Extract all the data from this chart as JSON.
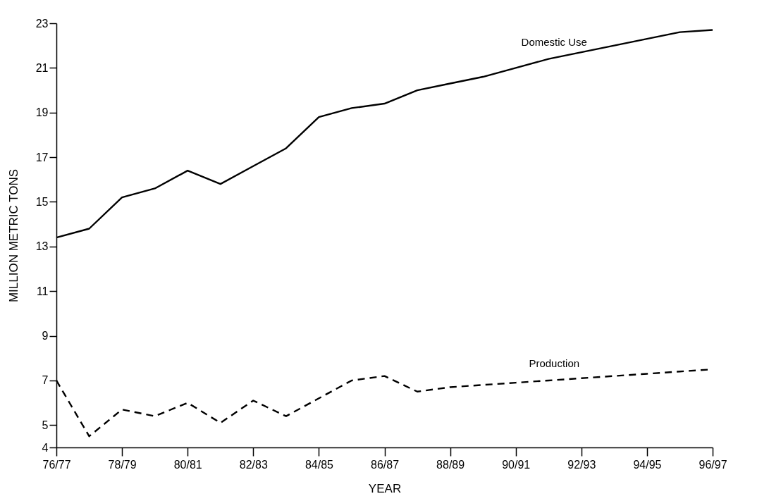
{
  "chart_data": {
    "type": "line",
    "xlabel": "YEAR",
    "ylabel": "MILLION METRIC TONS",
    "categories": [
      "76/77",
      null,
      "78/79",
      null,
      "80/81",
      null,
      "82/83",
      null,
      "84/85",
      null,
      "86/87",
      null,
      "88/89",
      null,
      "90/91",
      null,
      "92/93",
      null,
      "94/95",
      null,
      "96/97"
    ],
    "series": [
      {
        "name": "Domestic Use",
        "color": "#000000",
        "line_style": "solid",
        "values": [
          13.4,
          13.8,
          15.2,
          15.6,
          16.4,
          15.8,
          16.6,
          17.4,
          18.8,
          19.2,
          19.4,
          20.0,
          20.3,
          20.6,
          21.0,
          21.4,
          21.7,
          22.0,
          22.3,
          22.6,
          22.7
        ]
      },
      {
        "name": "Production",
        "color": "#000000",
        "line_style": "dashed",
        "values": [
          7.0,
          4.5,
          5.7,
          5.4,
          6.0,
          5.1,
          6.1,
          5.4,
          6.2,
          7.0,
          7.2,
          6.5,
          6.7,
          6.8,
          6.9,
          7.0,
          7.1,
          7.2,
          7.3,
          7.4,
          7.5
        ]
      }
    ],
    "ylim": [
      4,
      23
    ],
    "yticks": [
      4,
      5,
      7,
      9,
      11,
      13,
      15,
      17,
      19,
      21,
      23
    ],
    "grid": false,
    "legend": false
  }
}
